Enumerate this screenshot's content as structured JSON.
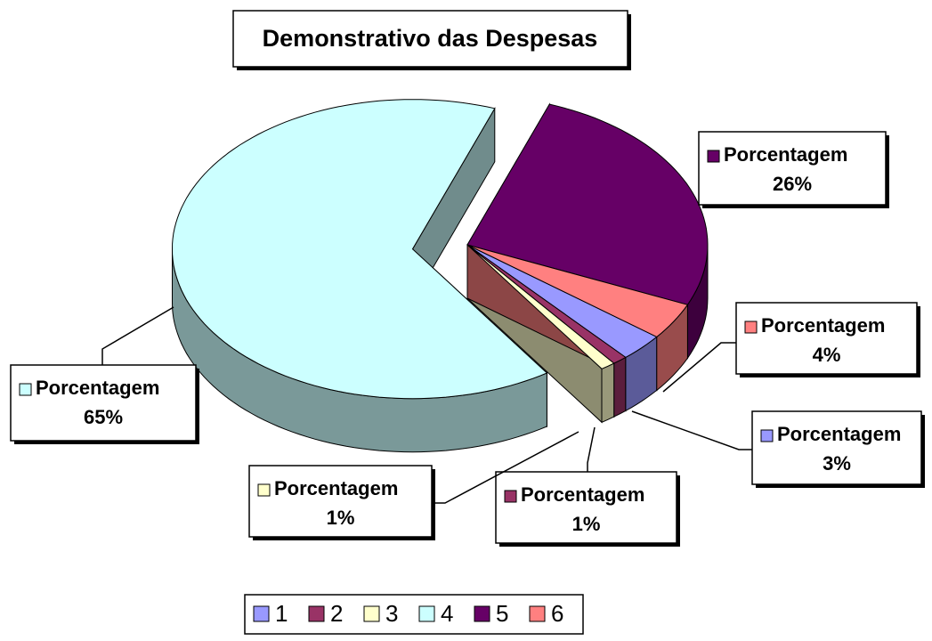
{
  "chart_data": {
    "type": "pie3d",
    "title": "Demonstrativo das Despesas",
    "series_name": "Porcentagem",
    "categories": [
      "1",
      "2",
      "3",
      "4",
      "5",
      "6"
    ],
    "values": [
      3,
      1,
      1,
      65,
      26,
      4
    ],
    "value_labels": [
      "3%",
      "1%",
      "1%",
      "65%",
      "26%",
      "4%"
    ],
    "colors": [
      "#9999ff",
      "#993366",
      "#ffffcc",
      "#ccffff",
      "#660066",
      "#ff8080"
    ],
    "legend": "bottom"
  }
}
